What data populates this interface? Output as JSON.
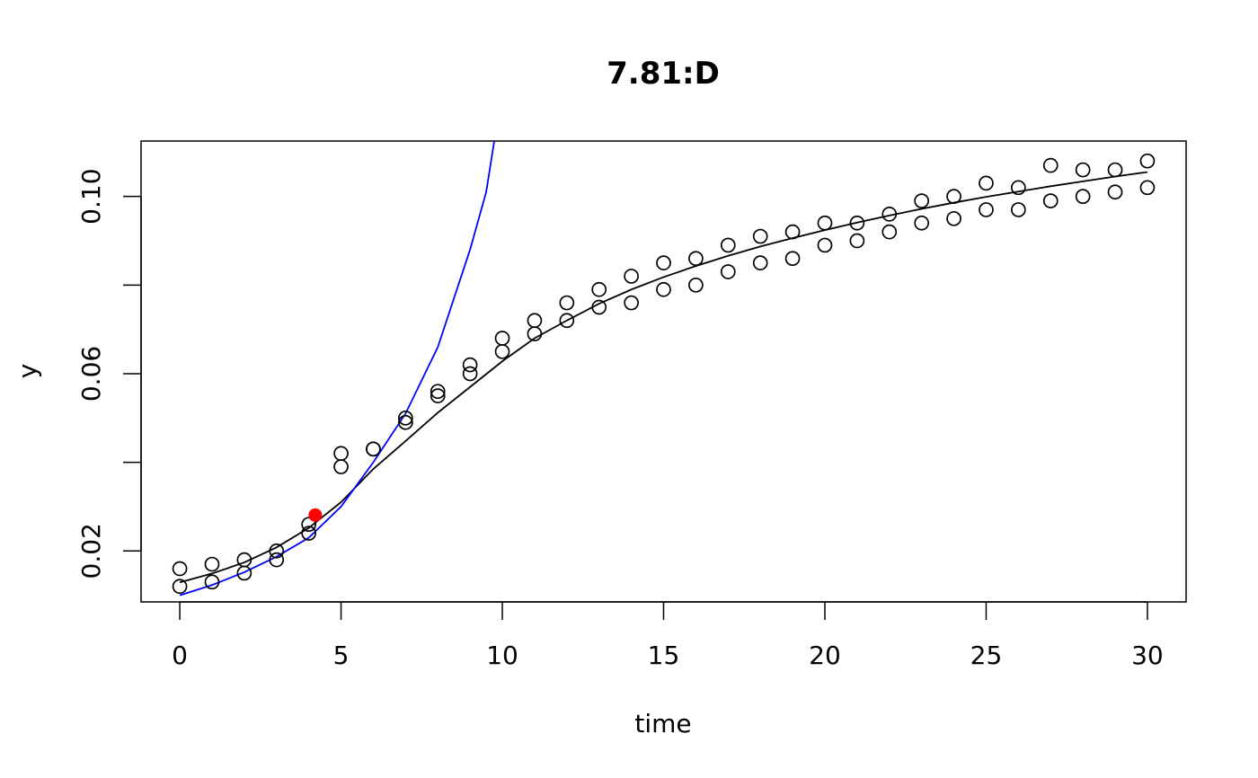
{
  "chart_data": {
    "type": "scatter",
    "title": "7.81:D",
    "xlabel": "time",
    "ylabel": "y",
    "xlim": [
      -1.2,
      31.2
    ],
    "ylim": [
      0.0085,
      0.1125
    ],
    "x_ticks": [
      0,
      5,
      10,
      15,
      20,
      25,
      30
    ],
    "x_tick_labels": [
      "0",
      "5",
      "10",
      "15",
      "20",
      "25",
      "30"
    ],
    "y_ticks": [
      0.02,
      0.04,
      0.06,
      0.08,
      0.1
    ],
    "y_tick_labels": [
      "0.02",
      "",
      "0.06",
      "",
      "0.10"
    ],
    "grid": false,
    "legend": "none",
    "colors": {
      "points": "#000000",
      "fit": "#000000",
      "exponential": "#0000ff",
      "marker": "#ff0000"
    },
    "series": [
      {
        "type": "scatter",
        "marker": "open-circle",
        "x": [
          0,
          0,
          1,
          1,
          2,
          2,
          3,
          3,
          4,
          4,
          5,
          5,
          6,
          6,
          7,
          7,
          8,
          8,
          9,
          9,
          10,
          10,
          11,
          11,
          12,
          12,
          13,
          13,
          14,
          14,
          15,
          15,
          16,
          16,
          17,
          17,
          18,
          18,
          19,
          19,
          20,
          20,
          21,
          21,
          22,
          22,
          23,
          23,
          24,
          24,
          25,
          25,
          26,
          26,
          27,
          27,
          28,
          28,
          29,
          29,
          30,
          30
        ],
        "y": [
          0.016,
          0.012,
          0.017,
          0.013,
          0.018,
          0.015,
          0.02,
          0.018,
          0.026,
          0.024,
          0.042,
          0.039,
          0.043,
          0.043,
          0.05,
          0.049,
          0.056,
          0.055,
          0.062,
          0.06,
          0.068,
          0.065,
          0.072,
          0.069,
          0.076,
          0.072,
          0.079,
          0.075,
          0.082,
          0.076,
          0.085,
          0.079,
          0.086,
          0.08,
          0.089,
          0.083,
          0.091,
          0.085,
          0.092,
          0.086,
          0.094,
          0.089,
          0.094,
          0.09,
          0.096,
          0.092,
          0.099,
          0.094,
          0.1,
          0.095,
          0.103,
          0.097,
          0.102,
          0.097,
          0.107,
          0.099,
          0.106,
          0.1,
          0.106,
          0.101,
          0.108,
          0.102
        ]
      },
      {
        "type": "line",
        "x": [
          0,
          1,
          2,
          3,
          4,
          5,
          6,
          7,
          8,
          9,
          10,
          11,
          12,
          13,
          14,
          15,
          16,
          17,
          18,
          19,
          20,
          21,
          22,
          23,
          24,
          25,
          26,
          27,
          28,
          29,
          30
        ],
        "y": [
          0.0129,
          0.0149,
          0.0174,
          0.0208,
          0.0252,
          0.031,
          0.0385,
          0.0448,
          0.0512,
          0.057,
          0.0628,
          0.068,
          0.072,
          0.0758,
          0.079,
          0.0818,
          0.0843,
          0.0866,
          0.0887,
          0.0906,
          0.0924,
          0.0941,
          0.0957,
          0.0972,
          0.0986,
          0.0999,
          0.1011,
          0.1023,
          0.1034,
          0.1045,
          0.1055
        ]
      },
      {
        "type": "line",
        "x": [
          0,
          1,
          2,
          3,
          4,
          5,
          6,
          7,
          8,
          9,
          9.5,
          9.75
        ],
        "y": [
          0.01,
          0.0123,
          0.0152,
          0.0187,
          0.023,
          0.03,
          0.04,
          0.051,
          0.066,
          0.088,
          0.101,
          0.1125
        ]
      },
      {
        "type": "point",
        "marker": "filled-circle",
        "x": [
          4.2
        ],
        "y": [
          0.0281
        ]
      }
    ]
  }
}
